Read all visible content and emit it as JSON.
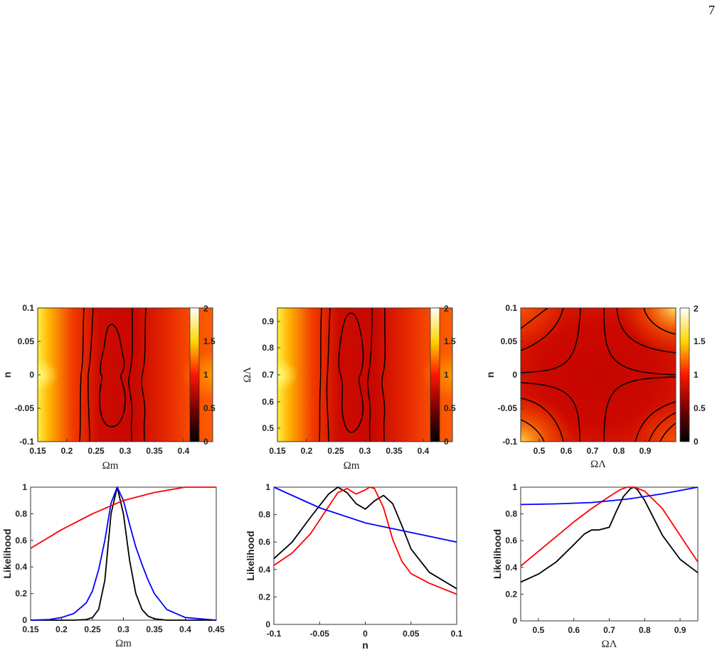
{
  "page_number": "7",
  "colorbar": {
    "min": 0,
    "max": 2,
    "tick_labels": [
      "0",
      "0.5",
      "1",
      "1.5",
      "2"
    ]
  },
  "chart_data": [
    {
      "type": "heatmap",
      "x_param": "Ωm",
      "y_param": "n",
      "xlabel": "Ωm",
      "ylabel": "n",
      "xlim": [
        0.15,
        0.45
      ],
      "ylim": [
        -0.1,
        0.1
      ],
      "xticks": [
        "0.15",
        "0.2",
        "0.25",
        "0.3",
        "0.35",
        "0.4"
      ],
      "yticks": [
        "-0.1",
        "-0.05",
        "0",
        "0.05",
        "0.1"
      ],
      "colorbar_range": [
        0,
        2
      ]
    },
    {
      "type": "heatmap",
      "x_param": "Ωm",
      "y_param": "ΩΛ",
      "xlabel": "Ωm",
      "ylabel": "ΩΛ",
      "xlim": [
        0.15,
        0.45
      ],
      "ylim": [
        0.45,
        0.95
      ],
      "xticks": [
        "0.15",
        "0.2",
        "0.25",
        "0.3",
        "0.35",
        "0.4"
      ],
      "yticks": [
        "0.5",
        "0.6",
        "0.7",
        "0.8",
        "0.9"
      ],
      "colorbar_range": [
        0,
        2
      ]
    },
    {
      "type": "heatmap",
      "x_param": "ΩΛ",
      "y_param": "n",
      "xlabel": "ΩΛ",
      "ylabel": "n",
      "xlim": [
        0.45,
        0.95
      ],
      "ylim": [
        -0.1,
        0.1
      ],
      "xticks": [
        "0.5",
        "0.6",
        "0.7",
        "0.8",
        "0.9"
      ],
      "yticks": [
        "-0.1",
        "-0.05",
        "0",
        "0.05",
        "0.1"
      ],
      "colorbar_range": [
        0,
        2
      ]
    },
    {
      "type": "line",
      "xlabel": "Ωm",
      "ylabel": "Likelihood",
      "xlim": [
        0.15,
        0.45
      ],
      "ylim": [
        0,
        1
      ],
      "xticks": [
        "0.15",
        "0.2",
        "0.25",
        "0.3",
        "0.35",
        "0.4",
        "0.45"
      ],
      "yticks": [
        "0",
        "0.2",
        "0.4",
        "0.6",
        "0.8",
        "1"
      ],
      "series": [
        {
          "color": "#000000",
          "x": [
            0.15,
            0.22,
            0.24,
            0.25,
            0.26,
            0.27,
            0.28,
            0.29,
            0.3,
            0.31,
            0.32,
            0.33,
            0.34,
            0.35,
            0.37,
            0.45
          ],
          "y": [
            0,
            0,
            0.005,
            0.02,
            0.08,
            0.3,
            0.8,
            1.0,
            0.8,
            0.45,
            0.2,
            0.08,
            0.03,
            0.01,
            0,
            0
          ]
        },
        {
          "color": "#0000ff",
          "x": [
            0.15,
            0.18,
            0.2,
            0.22,
            0.24,
            0.25,
            0.26,
            0.27,
            0.28,
            0.29,
            0.3,
            0.31,
            0.32,
            0.33,
            0.34,
            0.35,
            0.37,
            0.4,
            0.45
          ],
          "y": [
            0,
            0.005,
            0.02,
            0.05,
            0.13,
            0.22,
            0.38,
            0.6,
            0.88,
            1.0,
            0.9,
            0.72,
            0.55,
            0.42,
            0.3,
            0.2,
            0.08,
            0.02,
            0
          ]
        },
        {
          "color": "#ff0000",
          "x": [
            0.15,
            0.2,
            0.25,
            0.3,
            0.35,
            0.4,
            0.45
          ],
          "y": [
            0.54,
            0.68,
            0.8,
            0.9,
            0.96,
            1.0,
            1.0
          ]
        }
      ]
    },
    {
      "type": "line",
      "xlabel": "n",
      "ylabel": "Likelihood",
      "xlim": [
        -0.1,
        0.1
      ],
      "ylim": [
        0,
        1
      ],
      "xticks": [
        "-0.1",
        "-0.05",
        "0",
        "0.05",
        "0.1"
      ],
      "yticks": [
        "0",
        "0.2",
        "0.4",
        "0.6",
        "0.8",
        "1"
      ],
      "series": [
        {
          "color": "#000000",
          "x": [
            -0.1,
            -0.08,
            -0.06,
            -0.04,
            -0.03,
            -0.02,
            -0.01,
            0,
            0.01,
            0.02,
            0.03,
            0.04,
            0.05,
            0.07,
            0.1
          ],
          "y": [
            0.48,
            0.6,
            0.78,
            0.95,
            1.0,
            0.96,
            0.88,
            0.84,
            0.9,
            0.94,
            0.88,
            0.72,
            0.55,
            0.38,
            0.26
          ]
        },
        {
          "color": "#ff0000",
          "x": [
            -0.1,
            -0.08,
            -0.06,
            -0.04,
            -0.03,
            -0.02,
            -0.01,
            0,
            0.005,
            0.01,
            0.02,
            0.03,
            0.04,
            0.05,
            0.07,
            0.1
          ],
          "y": [
            0.43,
            0.52,
            0.66,
            0.86,
            0.96,
            0.99,
            0.95,
            0.98,
            1.0,
            0.99,
            0.85,
            0.62,
            0.46,
            0.37,
            0.3,
            0.22
          ]
        },
        {
          "color": "#0000ff",
          "x": [
            -0.1,
            -0.05,
            0,
            0.05,
            0.1
          ],
          "y": [
            1.0,
            0.85,
            0.74,
            0.67,
            0.6
          ]
        }
      ]
    },
    {
      "type": "line",
      "xlabel": "ΩΛ",
      "ylabel": "Likelihood",
      "xlim": [
        0.45,
        0.95
      ],
      "ylim": [
        0,
        1
      ],
      "xticks": [
        "0.5",
        "0.6",
        "0.7",
        "0.8",
        "0.9"
      ],
      "yticks": [
        "0",
        "0.2",
        "0.4",
        "0.6",
        "0.8",
        "1"
      ],
      "series": [
        {
          "color": "#000000",
          "x": [
            0.45,
            0.5,
            0.55,
            0.6,
            0.63,
            0.65,
            0.67,
            0.7,
            0.72,
            0.74,
            0.76,
            0.77,
            0.78,
            0.8,
            0.85,
            0.9,
            0.95
          ],
          "y": [
            0.29,
            0.35,
            0.44,
            0.57,
            0.65,
            0.68,
            0.68,
            0.7,
            0.82,
            0.93,
            0.99,
            1.0,
            0.98,
            0.9,
            0.64,
            0.46,
            0.36
          ]
        },
        {
          "color": "#ff0000",
          "x": [
            0.45,
            0.5,
            0.55,
            0.6,
            0.65,
            0.7,
            0.73,
            0.75,
            0.77,
            0.78,
            0.8,
            0.85,
            0.9,
            0.95
          ],
          "y": [
            0.41,
            0.52,
            0.63,
            0.74,
            0.84,
            0.93,
            0.98,
            1.0,
            1.0,
            0.99,
            0.97,
            0.84,
            0.64,
            0.44
          ]
        },
        {
          "color": "#0000ff",
          "x": [
            0.45,
            0.55,
            0.65,
            0.75,
            0.85,
            0.95
          ],
          "y": [
            0.87,
            0.875,
            0.885,
            0.91,
            0.95,
            1.0
          ]
        }
      ]
    }
  ]
}
